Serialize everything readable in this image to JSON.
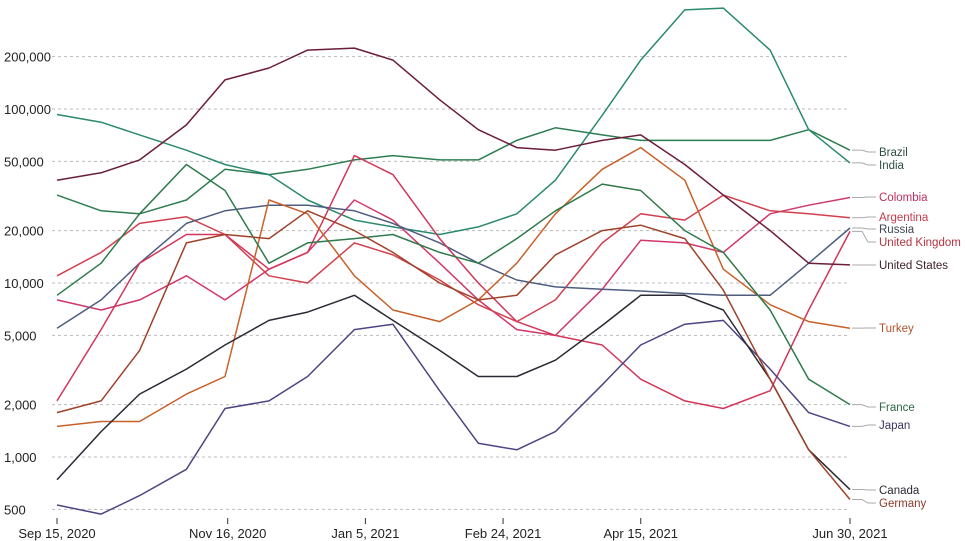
{
  "chart_data": {
    "type": "line",
    "title": "",
    "xlabel": "",
    "ylabel": "",
    "yscale": "log",
    "ylim": [
      420,
      420000
    ],
    "xlim": [
      "2020-09-15",
      "2021-06-30"
    ],
    "grid": "horizontal dashed",
    "legend": "direct labels at right end of lines",
    "y_ticks": [
      {
        "value": 200000,
        "label": "200,000"
      },
      {
        "value": 100000,
        "label": "100,000"
      },
      {
        "value": 50000,
        "label": "50,000"
      },
      {
        "value": 20000,
        "label": "20,000"
      },
      {
        "value": 10000,
        "label": "10,000"
      },
      {
        "value": 5000,
        "label": "5,000"
      },
      {
        "value": 2000,
        "label": "2,000"
      },
      {
        "value": 1000,
        "label": "1,000"
      },
      {
        "value": 500,
        "label": "500"
      }
    ],
    "x_ticks": [
      {
        "value": "2020-09-15",
        "label": "Sep 15, 2020"
      },
      {
        "value": "2020-11-16",
        "label": "Nov 16, 2020"
      },
      {
        "value": "2021-01-05",
        "label": "Jan 5, 2021"
      },
      {
        "value": "2021-02-24",
        "label": "Feb 24, 2021"
      },
      {
        "value": "2021-04-15",
        "label": "Apr 15, 2021"
      },
      {
        "value": "2021-06-30",
        "label": "Jun 30, 2021"
      }
    ],
    "x": [
      "2020-09-15",
      "2020-10-01",
      "2020-10-15",
      "2020-11-01",
      "2020-11-15",
      "2020-12-01",
      "2020-12-15",
      "2021-01-01",
      "2021-01-15",
      "2021-02-01",
      "2021-02-15",
      "2021-03-01",
      "2021-03-15",
      "2021-04-01",
      "2021-04-15",
      "2021-05-01",
      "2021-05-15",
      "2021-06-01",
      "2021-06-15",
      "2021-06-30"
    ],
    "series": [
      {
        "name": "Brazil",
        "color": "#2e7d52",
        "label_color": "#2f4f45",
        "values": [
          32000,
          26000,
          25000,
          30000,
          45000,
          42000,
          45000,
          51000,
          54000,
          51000,
          51000,
          66000,
          78000,
          71000,
          66000,
          66000,
          66000,
          66000,
          76000,
          58000
        ]
      },
      {
        "name": "India",
        "color": "#2a8a6e",
        "label_color": "#2f4f45",
        "values": [
          93000,
          84000,
          71000,
          58000,
          48000,
          42000,
          30000,
          23000,
          21000,
          19000,
          21000,
          25000,
          39000,
          92000,
          191000,
          371000,
          380000,
          218000,
          76000,
          49000
        ]
      },
      {
        "name": "Colombia",
        "color": "#d0386a",
        "label_color": "#c2305e",
        "values": [
          8000,
          7000,
          8000,
          11000,
          8000,
          12000,
          15000,
          30000,
          23000,
          13000,
          8000,
          5400,
          5000,
          9200,
          17600,
          17000,
          15000,
          25000,
          28000,
          31000
        ]
      },
      {
        "name": "Argentina",
        "color": "#d2404e",
        "label_color": "#c43a4a",
        "values": [
          11000,
          15000,
          22000,
          24000,
          19000,
          11000,
          10000,
          17000,
          14500,
          10400,
          7500,
          6000,
          8000,
          17000,
          25000,
          23000,
          32000,
          26000,
          25000,
          23700
        ]
      },
      {
        "name": "Russia",
        "color": "#4d5d80",
        "label_color": "#3e4656",
        "values": [
          5500,
          8000,
          13000,
          22000,
          26000,
          28000,
          28000,
          26000,
          22000,
          17000,
          13000,
          10400,
          9500,
          9200,
          9000,
          8700,
          8500,
          8500,
          13000,
          20700
        ]
      },
      {
        "name": "United Kingdom",
        "color": "#d3365a",
        "label_color": "#b5333f",
        "values": [
          2100,
          5400,
          13000,
          19000,
          19000,
          12000,
          15000,
          54000,
          42000,
          18000,
          10000,
          6000,
          5000,
          4400,
          2800,
          2100,
          1900,
          2400,
          7000,
          19800
        ]
      },
      {
        "name": "United States",
        "color": "#6b1d3a",
        "label_color": "#3a1f2a",
        "values": [
          39000,
          43000,
          51000,
          81000,
          147000,
          172000,
          218000,
          224000,
          191000,
          113000,
          76000,
          60000,
          58000,
          66000,
          71000,
          48000,
          32000,
          20000,
          13000,
          12700
        ]
      },
      {
        "name": "Turkey",
        "color": "#c8602a",
        "label_color": "#b0542a",
        "values": [
          1500,
          1600,
          1600,
          2300,
          2900,
          30000,
          25000,
          11000,
          7000,
          6000,
          8000,
          13000,
          25000,
          45000,
          60000,
          39000,
          12000,
          7500,
          6000,
          5500
        ]
      },
      {
        "name": "France",
        "color": "#2f7a4a",
        "label_color": "#2f6a45",
        "values": [
          8500,
          13000,
          25000,
          48000,
          34000,
          13000,
          17000,
          18000,
          19000,
          15000,
          13000,
          18000,
          26000,
          37000,
          34000,
          20000,
          15000,
          7000,
          2800,
          2000
        ]
      },
      {
        "name": "Japan",
        "color": "#4e4484",
        "label_color": "#3a3560",
        "values": [
          530,
          470,
          600,
          850,
          1900,
          2100,
          2900,
          5400,
          5800,
          2400,
          1200,
          1100,
          1400,
          2600,
          4400,
          5800,
          6100,
          3200,
          1800,
          1500
        ]
      },
      {
        "name": "Canada",
        "color": "#2a2a35",
        "label_color": "#2a2a35",
        "values": [
          740,
          1400,
          2300,
          3200,
          4400,
          6100,
          6800,
          8500,
          6100,
          4100,
          2900,
          2900,
          3600,
          5700,
          8500,
          8500,
          7000,
          2800,
          1100,
          650
        ]
      },
      {
        "name": "Germany",
        "color": "#a0422a",
        "label_color": "#8b3a2a",
        "values": [
          1800,
          2100,
          4100,
          17000,
          19000,
          18000,
          26000,
          20000,
          15000,
          10000,
          8000,
          8500,
          14500,
          20000,
          21500,
          18000,
          9100,
          2800,
          1100,
          570
        ]
      }
    ]
  }
}
